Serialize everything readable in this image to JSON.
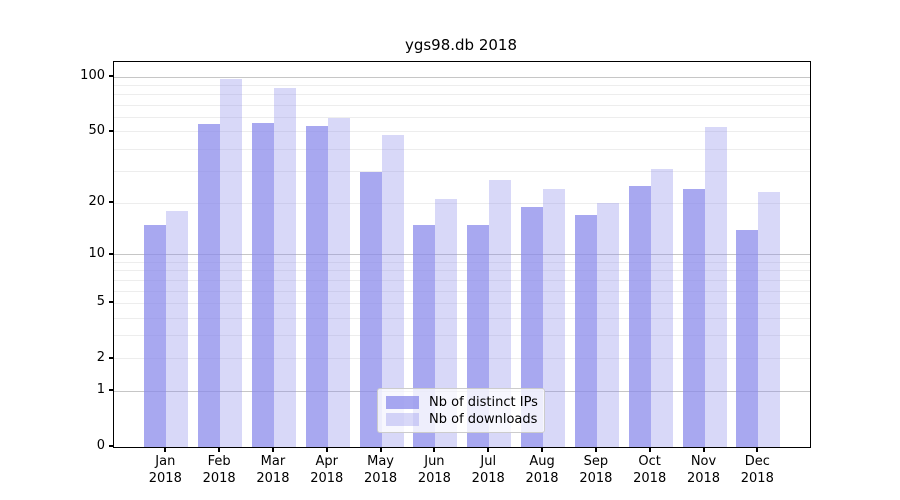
{
  "title": "ygs98.db 2018",
  "chart_data": {
    "type": "bar",
    "title": "ygs98.db 2018",
    "categories": [
      "Jan 2018",
      "Feb 2018",
      "Mar 2018",
      "Apr 2018",
      "May 2018",
      "Jun 2018",
      "Jul 2018",
      "Aug 2018",
      "Sep 2018",
      "Oct 2018",
      "Nov 2018",
      "Dec 2018"
    ],
    "series": [
      {
        "key": "ips",
        "name": "Nb of distinct IPs",
        "color": "#8888ea",
        "alpha": 0.73,
        "values": [
          15,
          55,
          56,
          54,
          30,
          15,
          15,
          19,
          17,
          25,
          24,
          14
        ]
      },
      {
        "key": "downloads",
        "name": "Nb of downloads",
        "color": "#8888ea",
        "alpha": 0.33,
        "values": [
          18,
          98,
          87,
          60,
          48,
          21,
          27,
          24,
          20,
          31,
          53,
          23
        ]
      }
    ],
    "yscale": "log1p",
    "ylim": [
      0,
      121
    ],
    "yticks": [
      0,
      1,
      2,
      5,
      10,
      20,
      50,
      100
    ],
    "grid": {
      "major": [
        1,
        10,
        100
      ],
      "minor": [
        2,
        3,
        4,
        5,
        6,
        7,
        8,
        9,
        20,
        30,
        40,
        50,
        60,
        70,
        80,
        90
      ]
    },
    "xlabel": "",
    "ylabel": "",
    "legend_position": "lower center"
  },
  "colors": {
    "bar_base": "#8888ea",
    "grid_major": "#c6c6c6",
    "grid_minor": "#ededed",
    "axis": "#000000",
    "legend_border": "#cccccc"
  }
}
